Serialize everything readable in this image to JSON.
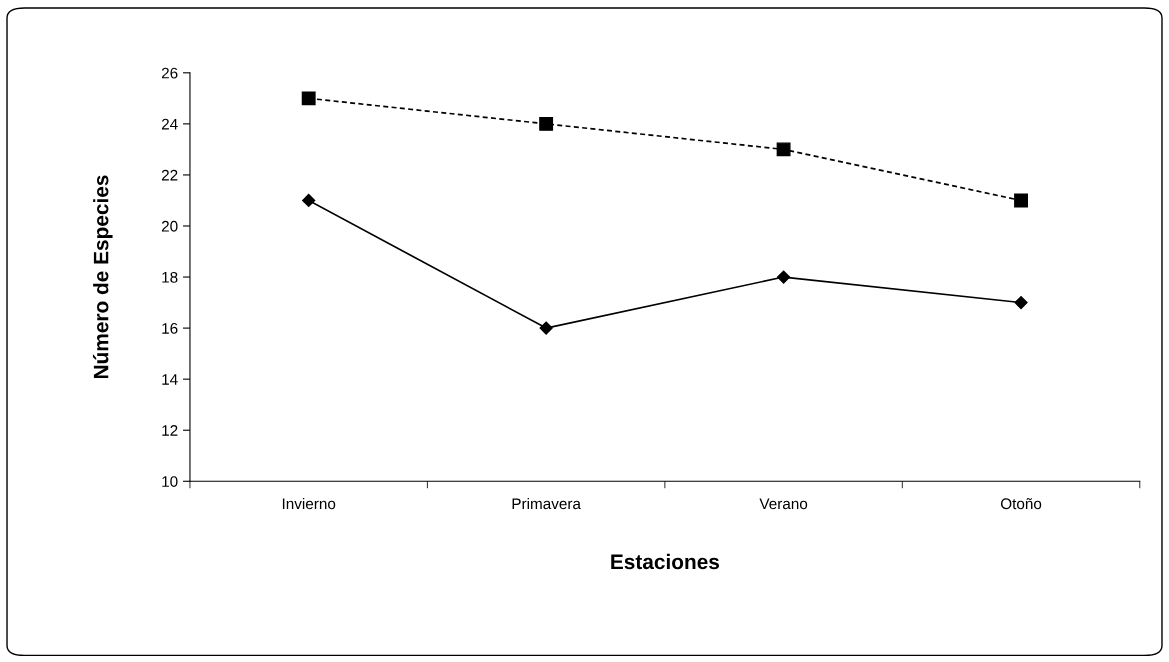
{
  "chart_data": {
    "type": "line",
    "xlabel": "Estaciones",
    "ylabel": "Número de Especies",
    "categories": [
      "Invierno",
      "Primavera",
      "Verano",
      "Otoño"
    ],
    "series": [
      {
        "color": "#000000",
        "values": [
          25,
          24,
          23,
          21
        ],
        "marker": "square",
        "line_style": "dashed"
      },
      {
        "color": "#000000",
        "values": [
          21,
          16,
          18,
          17
        ],
        "marker": "diamond",
        "line_style": "solid"
      }
    ],
    "ylim": [
      10,
      26
    ],
    "yticks": [
      10,
      12,
      14,
      16,
      18,
      20,
      22,
      24,
      26
    ],
    "grid": false,
    "legend": false
  }
}
